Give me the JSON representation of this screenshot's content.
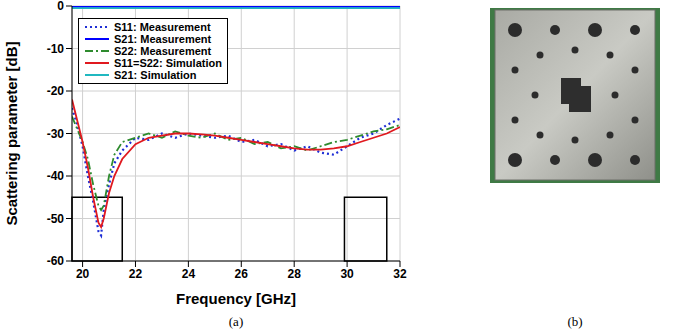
{
  "chart_data": {
    "type": "line",
    "x_label": "Frequency  [GHz]",
    "y_label": "Scattering parameter  [dB]",
    "caption": "(a)",
    "x": [
      19.6,
      19.8,
      20.0,
      20.2,
      20.4,
      20.6,
      20.7,
      20.8,
      21.0,
      21.2,
      21.5,
      22,
      22.5,
      23,
      23.5,
      24,
      24.5,
      25,
      25.5,
      26,
      26.5,
      27,
      27.5,
      28,
      28.5,
      29,
      29.5,
      30,
      30.5,
      31,
      31.5,
      32
    ],
    "series": [
      {
        "name": "S11: Measurement",
        "color": "#1f2fd6",
        "line_style": "dotted",
        "values": [
          -24,
          -28,
          -33,
          -40,
          -46,
          -53,
          -54,
          -48,
          -42,
          -37,
          -34,
          -31,
          -31.5,
          -30,
          -31,
          -30,
          -30.5,
          -31,
          -30.5,
          -32,
          -31.5,
          -33,
          -32.5,
          -34,
          -33,
          -34.5,
          -35,
          -33,
          -31,
          -30,
          -28,
          -26.5
        ]
      },
      {
        "name": "S21: Measurement",
        "color": "#0000ff",
        "line_style": "solid",
        "values": [
          -0.2,
          -0.2,
          -0.2,
          -0.2,
          -0.2,
          -0.2,
          -0.2,
          -0.2,
          -0.2,
          -0.2,
          -0.2,
          -0.2,
          -0.2,
          -0.2,
          -0.2,
          -0.2,
          -0.2,
          -0.2,
          -0.2,
          -0.2,
          -0.2,
          -0.2,
          -0.2,
          -0.2,
          -0.2,
          -0.2,
          -0.2,
          -0.2,
          -0.2,
          -0.2,
          -0.2,
          -0.2
        ]
      },
      {
        "name": "S22: Measurement",
        "color": "#2e8b2e",
        "line_style": "dashdot",
        "values": [
          -26,
          -29,
          -32,
          -36,
          -42,
          -47,
          -48,
          -47,
          -40,
          -35,
          -32,
          -31,
          -30,
          -31,
          -29.5,
          -30.5,
          -31,
          -30,
          -31.5,
          -31,
          -32.5,
          -32,
          -33.5,
          -33,
          -34,
          -33,
          -32,
          -31.5,
          -30.5,
          -29.5,
          -29,
          -28
        ]
      },
      {
        "name": "S11=S22: Simulation",
        "color": "#e0191f",
        "line_style": "solid",
        "values": [
          -22,
          -27,
          -32,
          -38,
          -45,
          -51,
          -52,
          -50,
          -44,
          -40,
          -36,
          -32.5,
          -31,
          -30.5,
          -30,
          -30,
          -30.2,
          -30.5,
          -31,
          -31.5,
          -32,
          -32.5,
          -33,
          -33.5,
          -33.8,
          -33.8,
          -33.5,
          -33,
          -32,
          -31,
          -30,
          -28.5
        ]
      },
      {
        "name": "S21: Simulation",
        "color": "#20b8c0",
        "line_style": "solid",
        "values": [
          -0.5,
          -0.5,
          -0.5,
          -0.5,
          -0.5,
          -0.5,
          -0.5,
          -0.5,
          -0.5,
          -0.5,
          -0.5,
          -0.5,
          -0.5,
          -0.5,
          -0.5,
          -0.5,
          -0.5,
          -0.5,
          -0.5,
          -0.5,
          -0.5,
          -0.5,
          -0.5,
          -0.5,
          -0.5,
          -0.5,
          -0.5,
          -0.5,
          -0.5,
          -0.5,
          -0.5,
          -0.5
        ]
      }
    ],
    "xlim": [
      19.6,
      32
    ],
    "xticks": [
      20,
      22,
      24,
      26,
      28,
      30,
      32
    ],
    "ylim": [
      -60,
      0
    ],
    "yticks": [
      0,
      -10,
      -20,
      -30,
      -40,
      -50,
      -60
    ],
    "grid": true,
    "legend": "upper left",
    "bands": [
      {
        "x": [
          19.6,
          21.5
        ],
        "y": [
          -60,
          -45
        ]
      },
      {
        "x": [
          29.9,
          31.5
        ],
        "y": [
          -60,
          -45
        ]
      }
    ]
  },
  "panel_b": {
    "caption": "(b)"
  }
}
